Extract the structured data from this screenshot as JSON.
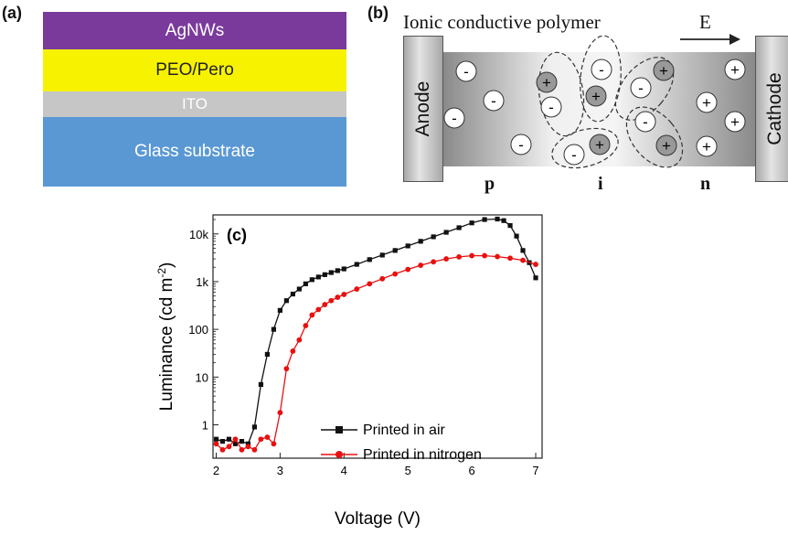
{
  "panels": {
    "a_label": "(a)",
    "b_label": "(b)",
    "c_label": "(c)"
  },
  "stack": {
    "layers": [
      {
        "label": "AgNWs",
        "color": "#7a3a9c",
        "text_color": "#ffffff"
      },
      {
        "label": "PEO/Pero",
        "color": "#f7f200",
        "text_color": "#222222"
      },
      {
        "label": "ITO",
        "color": "#c6c6c6",
        "text_color": "#ffffff"
      },
      {
        "label": "Glass substrate",
        "color": "#5a98d4",
        "text_color": "#ffffff"
      }
    ]
  },
  "device": {
    "title": "Ionic conductive polymer",
    "field_label": "E",
    "anode_label": "Anode",
    "cathode_label": "Cathode",
    "zones": [
      "p",
      "i",
      "n"
    ],
    "minus_symbol": "-",
    "plus_symbol": "+"
  },
  "chart_data": {
    "type": "line",
    "xlabel": "Voltage (V)",
    "ylabel": "Luminance (cd m",
    "ylabel_sup": "-2",
    "ylabel_close": ")",
    "xlim": [
      1.95,
      7.1
    ],
    "ylim": [
      0.2,
      25000
    ],
    "yscale": "log",
    "x_ticks": [
      "2",
      "3",
      "4",
      "5",
      "6",
      "7"
    ],
    "y_ticks": [
      "1",
      "10",
      "100",
      "1k",
      "10k"
    ],
    "legend_position": "lower-right",
    "series": [
      {
        "name": "Printed in air",
        "color": "#111111",
        "marker": "square",
        "x": [
          2.0,
          2.1,
          2.2,
          2.3,
          2.4,
          2.5,
          2.6,
          2.7,
          2.8,
          2.9,
          3.0,
          3.1,
          3.2,
          3.3,
          3.4,
          3.5,
          3.6,
          3.7,
          3.8,
          3.9,
          4.0,
          4.2,
          4.4,
          4.6,
          4.8,
          5.0,
          5.2,
          5.4,
          5.6,
          5.8,
          6.0,
          6.2,
          6.4,
          6.5,
          6.6,
          6.7,
          6.8,
          6.9,
          7.0
        ],
        "y": [
          0.5,
          0.45,
          0.5,
          0.4,
          0.45,
          0.4,
          0.9,
          7,
          30,
          100,
          250,
          400,
          550,
          700,
          900,
          1100,
          1250,
          1400,
          1550,
          1700,
          1850,
          2300,
          2900,
          3600,
          4500,
          5600,
          7000,
          8700,
          10800,
          13500,
          17000,
          20000,
          20500,
          19000,
          15000,
          9000,
          4500,
          2500,
          1200
        ]
      },
      {
        "name": "Printed in nitrogen",
        "color": "#e81010",
        "marker": "circle",
        "x": [
          2.0,
          2.1,
          2.2,
          2.3,
          2.4,
          2.5,
          2.6,
          2.7,
          2.8,
          2.9,
          3.0,
          3.1,
          3.2,
          3.3,
          3.4,
          3.5,
          3.6,
          3.7,
          3.8,
          3.9,
          4.0,
          4.2,
          4.4,
          4.6,
          4.8,
          5.0,
          5.2,
          5.4,
          5.6,
          5.8,
          6.0,
          6.2,
          6.4,
          6.6,
          6.8,
          7.0
        ],
        "y": [
          0.4,
          0.3,
          0.35,
          0.5,
          0.3,
          0.35,
          0.3,
          0.5,
          0.55,
          0.4,
          1.8,
          15,
          35,
          60,
          120,
          200,
          260,
          330,
          400,
          470,
          540,
          700,
          900,
          1150,
          1450,
          1800,
          2200,
          2600,
          3000,
          3300,
          3500,
          3500,
          3350,
          3100,
          2800,
          2300
        ]
      }
    ]
  }
}
